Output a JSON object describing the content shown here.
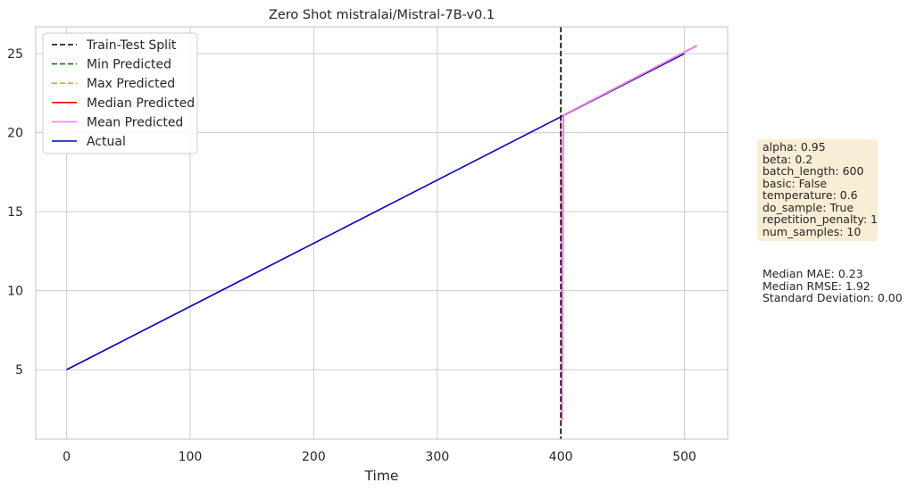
{
  "chart_data": {
    "type": "line",
    "title": "Zero Shot mistralai/Mistral-7B-v0.1",
    "xlabel": "Time",
    "ylabel": "",
    "xlim": [
      -25,
      535
    ],
    "ylim": [
      0.6,
      26.7
    ],
    "xticks": [
      0,
      100,
      200,
      300,
      400,
      500
    ],
    "yticks": [
      5,
      10,
      15,
      20,
      25
    ],
    "grid": true,
    "legend_position": "upper-left",
    "split_x": 400,
    "series": [
      {
        "name": "Train-Test Split",
        "color": "#000000",
        "dash": true,
        "kind": "vline",
        "x": 400
      },
      {
        "name": "Min Predicted",
        "color": "#008000",
        "dash": true,
        "x": [
          400,
          401,
          402,
          510
        ],
        "y": [
          21,
          1.8,
          21.1,
          25.5
        ]
      },
      {
        "name": "Max Predicted",
        "color": "#ffa500",
        "dash": true,
        "x": [
          400,
          401,
          402,
          510
        ],
        "y": [
          21,
          1.8,
          21.1,
          25.5
        ]
      },
      {
        "name": "Median Predicted",
        "color": "#ff0000",
        "dash": false,
        "x": [
          400,
          401,
          402,
          510
        ],
        "y": [
          21,
          1.8,
          21.1,
          25.5
        ]
      },
      {
        "name": "Mean Predicted",
        "color": "#ee82ee",
        "dash": false,
        "x": [
          400,
          401,
          402,
          510
        ],
        "y": [
          21,
          1.8,
          21.1,
          25.5
        ]
      },
      {
        "name": "Actual",
        "color": "#0000cd",
        "dash": false,
        "x": [
          0,
          500
        ],
        "y": [
          5,
          25
        ]
      }
    ]
  },
  "params": [
    "alpha: 0.95",
    "beta: 0.2",
    "batch_length: 600",
    "basic: False",
    "temperature: 0.6",
    "do_sample: True",
    "repetition_penalty: 1",
    "num_samples: 10"
  ],
  "metrics": [
    "Median MAE: 0.23",
    "Median RMSE: 1.92",
    "Standard Deviation: 0.00"
  ],
  "colors": {
    "grid": "#cccccc",
    "spine": "#cccccc",
    "params_box": "#f5deb3"
  }
}
